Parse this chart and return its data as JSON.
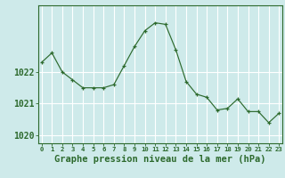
{
  "x": [
    0,
    1,
    2,
    3,
    4,
    5,
    6,
    7,
    8,
    9,
    10,
    11,
    12,
    13,
    14,
    15,
    16,
    17,
    18,
    19,
    20,
    21,
    22,
    23
  ],
  "y": [
    1022.3,
    1022.6,
    1022.0,
    1021.75,
    1021.5,
    1021.5,
    1021.5,
    1021.6,
    1022.2,
    1022.8,
    1023.3,
    1023.55,
    1023.5,
    1022.7,
    1021.7,
    1021.3,
    1021.2,
    1020.8,
    1020.85,
    1021.15,
    1020.75,
    1020.75,
    1020.4,
    1020.7
  ],
  "line_color": "#2d6a2d",
  "marker_color": "#2d6a2d",
  "bg_color": "#ceeaea",
  "grid_color": "#ffffff",
  "border_color": "#2d6a2d",
  "xlabel": "Graphe pression niveau de la mer (hPa)",
  "yticks": [
    1020,
    1021,
    1022
  ],
  "ylim": [
    1019.75,
    1024.1
  ],
  "xlim": [
    -0.3,
    23.3
  ],
  "xlabel_fontsize": 7.5,
  "ytick_fontsize": 7,
  "xtick_fontsize": 5.2
}
